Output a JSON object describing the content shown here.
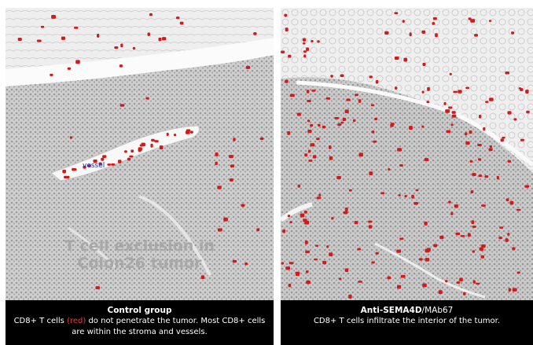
{
  "left_panel": {
    "vessel_label": "vessel",
    "overlay_line1": "T cell exclusion in",
    "overlay_line2": "Colon26 tumor",
    "caption_title": "Control group",
    "caption_body_part1": "CD8+ T cells ",
    "caption_body_red": "(red)",
    "caption_body_part2": " do not penetrate the tumor. Most CD8+ cells are within the stroma and vessels."
  },
  "right_panel": {
    "caption_title_bold": "Anti-SEMA4D",
    "caption_title_normal": "/MAb67",
    "caption_body": "CD8+ T cells infiltrate the interior of the tumor."
  },
  "colors": {
    "tissue_bg": "#e9e9e9",
    "tissue_dense": "#bdbdbd",
    "stroma": "#f7f7f7",
    "tcell_stain": "#d11a1a",
    "caption_bg": "#000000"
  }
}
